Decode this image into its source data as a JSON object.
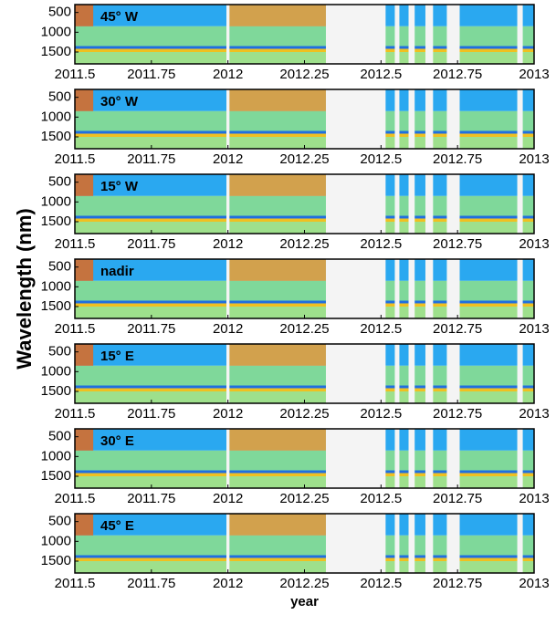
{
  "chart_data": [
    {
      "type": "heatmap",
      "title": "45° W",
      "xlim": [
        2011.5,
        2013
      ],
      "xticks": [
        2011.5,
        2011.75,
        2012,
        2012.25,
        2012.5,
        2012.75,
        2013
      ],
      "ylim": [
        1800,
        300
      ],
      "yticks": [
        500,
        1000,
        1500
      ],
      "bands": [
        {
          "y": [
            300,
            850
          ],
          "color": "#2aa8f0"
        },
        {
          "y": [
            850,
            1350
          ],
          "color": "#7fd89a"
        },
        {
          "y": [
            1350,
            1420
          ],
          "color": "#1f6fe0"
        },
        {
          "y": [
            1420,
            1500
          ],
          "color": "#f0c020"
        },
        {
          "y": [
            1500,
            1800
          ],
          "color": "#9ee08c"
        }
      ],
      "overlays": [
        {
          "x": [
            2011.5,
            2011.56
          ],
          "color": "#e06a20"
        },
        {
          "x": [
            2012,
            2012.32
          ],
          "color": "#f0a030"
        }
      ],
      "gaps": [
        [
          2011.995,
          2012.005
        ],
        [
          2012.32,
          2012.515
        ],
        [
          2012.545,
          2012.56
        ],
        [
          2012.59,
          2012.61
        ],
        [
          2012.645,
          2012.67
        ],
        [
          2012.715,
          2012.757
        ],
        [
          2012.945,
          2012.963
        ]
      ],
      "gap_color": "#f4f4f4"
    },
    {
      "type": "heatmap",
      "title": "30° W",
      "xlim": [
        2011.5,
        2013
      ],
      "xticks": [
        2011.5,
        2011.75,
        2012,
        2012.25,
        2012.5,
        2012.75,
        2013
      ],
      "ylim": [
        1800,
        300
      ],
      "yticks": [
        500,
        1000,
        1500
      ],
      "bands": [
        {
          "y": [
            300,
            850
          ],
          "color": "#2aa8f0"
        },
        {
          "y": [
            850,
            1350
          ],
          "color": "#7fd89a"
        },
        {
          "y": [
            1350,
            1420
          ],
          "color": "#1f6fe0"
        },
        {
          "y": [
            1420,
            1500
          ],
          "color": "#f0c020"
        },
        {
          "y": [
            1500,
            1800
          ],
          "color": "#9ee08c"
        }
      ],
      "overlays": [
        {
          "x": [
            2011.5,
            2011.56
          ],
          "color": "#e06a20"
        },
        {
          "x": [
            2012,
            2012.32
          ],
          "color": "#f0a030"
        }
      ],
      "gaps": [
        [
          2011.995,
          2012.005
        ],
        [
          2012.32,
          2012.515
        ],
        [
          2012.545,
          2012.56
        ],
        [
          2012.59,
          2012.61
        ],
        [
          2012.645,
          2012.67
        ],
        [
          2012.715,
          2012.757
        ],
        [
          2012.945,
          2012.963
        ]
      ],
      "gap_color": "#f4f4f4"
    },
    {
      "type": "heatmap",
      "title": "15° W",
      "xlim": [
        2011.5,
        2013
      ],
      "xticks": [
        2011.5,
        2011.75,
        2012,
        2012.25,
        2012.5,
        2012.75,
        2013
      ],
      "ylim": [
        1800,
        300
      ],
      "yticks": [
        500,
        1000,
        1500
      ],
      "bands": [
        {
          "y": [
            300,
            850
          ],
          "color": "#2aa8f0"
        },
        {
          "y": [
            850,
            1350
          ],
          "color": "#7fd89a"
        },
        {
          "y": [
            1350,
            1420
          ],
          "color": "#1f6fe0"
        },
        {
          "y": [
            1420,
            1500
          ],
          "color": "#f0c020"
        },
        {
          "y": [
            1500,
            1800
          ],
          "color": "#9ee08c"
        }
      ],
      "overlays": [
        {
          "x": [
            2011.5,
            2011.56
          ],
          "color": "#e06a20"
        },
        {
          "x": [
            2012,
            2012.32
          ],
          "color": "#f0a030"
        }
      ],
      "gaps": [
        [
          2011.995,
          2012.005
        ],
        [
          2012.32,
          2012.515
        ],
        [
          2012.545,
          2012.56
        ],
        [
          2012.59,
          2012.61
        ],
        [
          2012.645,
          2012.67
        ],
        [
          2012.715,
          2012.757
        ],
        [
          2012.945,
          2012.963
        ]
      ],
      "gap_color": "#f4f4f4"
    },
    {
      "type": "heatmap",
      "title": "nadir",
      "ylabel": "Wavelength (nm)",
      "xlim": [
        2011.5,
        2013
      ],
      "xticks": [
        2011.5,
        2011.75,
        2012,
        2012.25,
        2012.5,
        2012.75,
        2013
      ],
      "ylim": [
        1800,
        300
      ],
      "yticks": [
        500,
        1000,
        1500
      ],
      "bands": [
        {
          "y": [
            300,
            850
          ],
          "color": "#2aa8f0"
        },
        {
          "y": [
            850,
            1350
          ],
          "color": "#7fd89a"
        },
        {
          "y": [
            1350,
            1420
          ],
          "color": "#1f6fe0"
        },
        {
          "y": [
            1420,
            1500
          ],
          "color": "#f0c020"
        },
        {
          "y": [
            1500,
            1800
          ],
          "color": "#9ee08c"
        }
      ],
      "overlays": [
        {
          "x": [
            2011.5,
            2011.56
          ],
          "color": "#e06a20"
        },
        {
          "x": [
            2012,
            2012.32
          ],
          "color": "#f0a030"
        }
      ],
      "gaps": [
        [
          2011.995,
          2012.005
        ],
        [
          2012.32,
          2012.515
        ],
        [
          2012.545,
          2012.56
        ],
        [
          2012.59,
          2012.61
        ],
        [
          2012.645,
          2012.67
        ],
        [
          2012.715,
          2012.757
        ],
        [
          2012.945,
          2012.963
        ]
      ],
      "gap_color": "#f4f4f4"
    },
    {
      "type": "heatmap",
      "title": "15° E",
      "xlim": [
        2011.5,
        2013
      ],
      "xticks": [
        2011.5,
        2011.75,
        2012,
        2012.25,
        2012.5,
        2012.75,
        2013
      ],
      "ylim": [
        1800,
        300
      ],
      "yticks": [
        500,
        1000,
        1500
      ],
      "bands": [
        {
          "y": [
            300,
            850
          ],
          "color": "#2aa8f0"
        },
        {
          "y": [
            850,
            1350
          ],
          "color": "#7fd89a"
        },
        {
          "y": [
            1350,
            1420
          ],
          "color": "#1f6fe0"
        },
        {
          "y": [
            1420,
            1500
          ],
          "color": "#f0c020"
        },
        {
          "y": [
            1500,
            1800
          ],
          "color": "#9ee08c"
        }
      ],
      "overlays": [
        {
          "x": [
            2011.5,
            2011.56
          ],
          "color": "#e06a20"
        },
        {
          "x": [
            2012,
            2012.32
          ],
          "color": "#f0a030"
        }
      ],
      "gaps": [
        [
          2011.995,
          2012.005
        ],
        [
          2012.32,
          2012.515
        ],
        [
          2012.545,
          2012.56
        ],
        [
          2012.59,
          2012.61
        ],
        [
          2012.645,
          2012.67
        ],
        [
          2012.715,
          2012.757
        ],
        [
          2012.945,
          2012.963
        ]
      ],
      "gap_color": "#f4f4f4"
    },
    {
      "type": "heatmap",
      "title": "30° E",
      "xlim": [
        2011.5,
        2013
      ],
      "xticks": [
        2011.5,
        2011.75,
        2012,
        2012.25,
        2012.5,
        2012.75,
        2013
      ],
      "ylim": [
        1800,
        300
      ],
      "yticks": [
        500,
        1000,
        1500
      ],
      "bands": [
        {
          "y": [
            300,
            850
          ],
          "color": "#2aa8f0"
        },
        {
          "y": [
            850,
            1350
          ],
          "color": "#7fd89a"
        },
        {
          "y": [
            1350,
            1420
          ],
          "color": "#1f6fe0"
        },
        {
          "y": [
            1420,
            1500
          ],
          "color": "#f0c020"
        },
        {
          "y": [
            1500,
            1800
          ],
          "color": "#9ee08c"
        }
      ],
      "overlays": [
        {
          "x": [
            2011.5,
            2011.56
          ],
          "color": "#e06a20"
        },
        {
          "x": [
            2012,
            2012.32
          ],
          "color": "#f0a030"
        }
      ],
      "gaps": [
        [
          2011.995,
          2012.005
        ],
        [
          2012.32,
          2012.515
        ],
        [
          2012.545,
          2012.56
        ],
        [
          2012.59,
          2012.61
        ],
        [
          2012.645,
          2012.67
        ],
        [
          2012.715,
          2012.757
        ],
        [
          2012.945,
          2012.963
        ]
      ],
      "gap_color": "#f4f4f4"
    },
    {
      "type": "heatmap",
      "title": "45° E",
      "xlabel": "year",
      "xlim": [
        2011.5,
        2013
      ],
      "xticks": [
        2011.5,
        2011.75,
        2012,
        2012.25,
        2012.5,
        2012.75,
        2013
      ],
      "ylim": [
        1800,
        300
      ],
      "yticks": [
        500,
        1000,
        1500
      ],
      "bands": [
        {
          "y": [
            300,
            850
          ],
          "color": "#2aa8f0"
        },
        {
          "y": [
            850,
            1350
          ],
          "color": "#7fd89a"
        },
        {
          "y": [
            1350,
            1420
          ],
          "color": "#1f6fe0"
        },
        {
          "y": [
            1420,
            1500
          ],
          "color": "#f0c020"
        },
        {
          "y": [
            1500,
            1800
          ],
          "color": "#9ee08c"
        }
      ],
      "overlays": [
        {
          "x": [
            2011.5,
            2011.56
          ],
          "color": "#e06a20"
        },
        {
          "x": [
            2012,
            2012.32
          ],
          "color": "#f0a030"
        }
      ],
      "gaps": [
        [
          2011.995,
          2012.005
        ],
        [
          2012.32,
          2012.515
        ],
        [
          2012.545,
          2012.56
        ],
        [
          2012.59,
          2012.61
        ],
        [
          2012.645,
          2012.67
        ],
        [
          2012.715,
          2012.757
        ],
        [
          2012.945,
          2012.963
        ]
      ],
      "gap_color": "#f4f4f4"
    }
  ]
}
